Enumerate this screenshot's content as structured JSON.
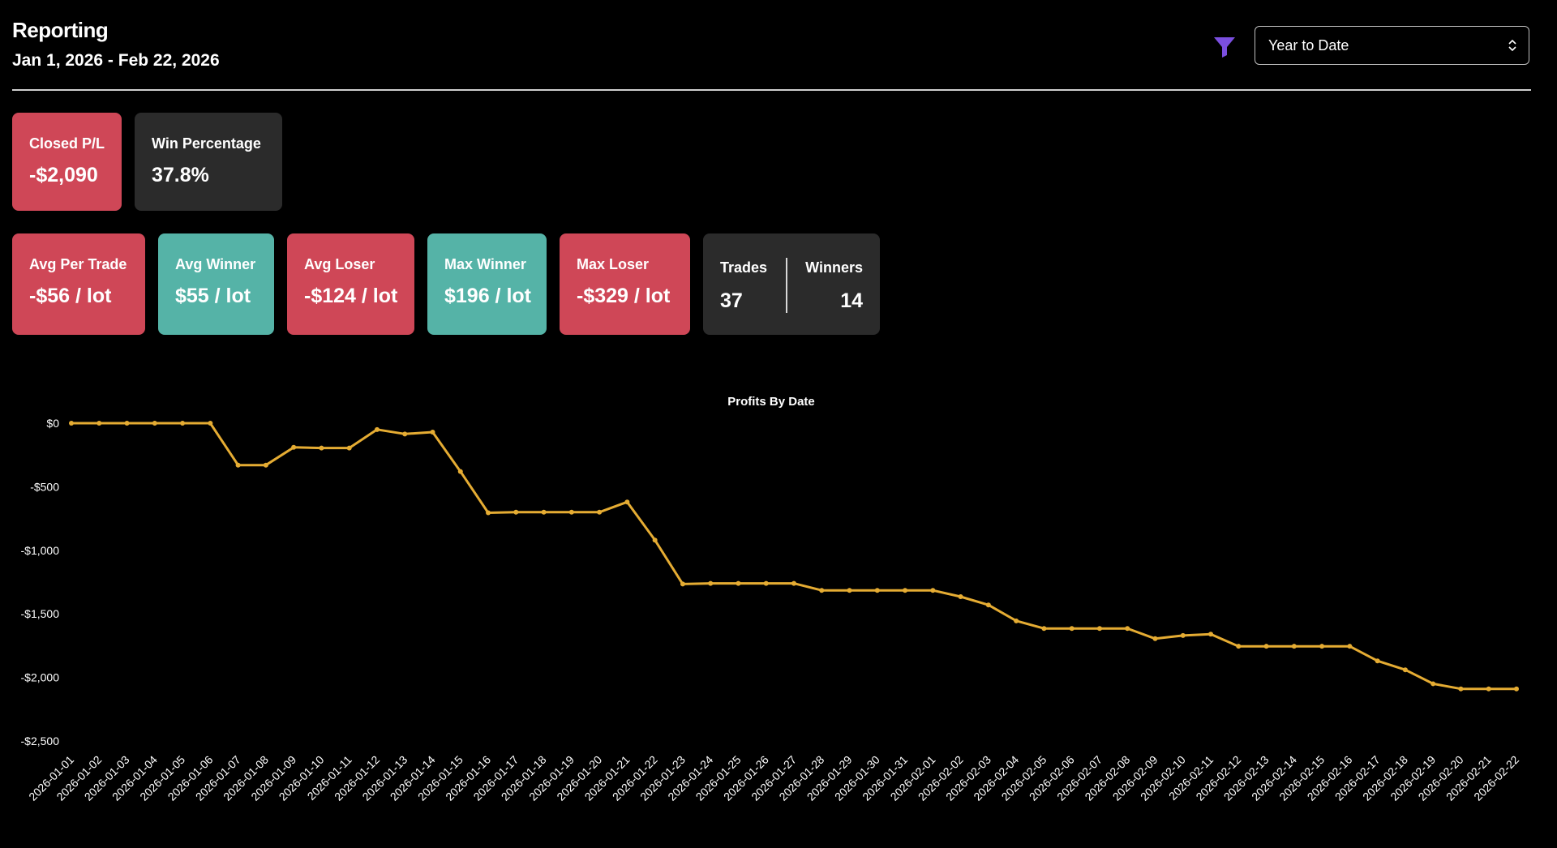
{
  "header": {
    "title": "Reporting",
    "date_range": "Jan 1, 2026 - Feb 22, 2026"
  },
  "filter": {
    "icon": "funnel-icon",
    "color": "#7b4fe0",
    "period_select": "Year to Date"
  },
  "summary": {
    "closed_pl": {
      "label": "Closed P/L",
      "value": "-$2,090"
    },
    "win_percentage": {
      "label": "Win Percentage",
      "value": "37.8%"
    }
  },
  "stats": {
    "avg_per_trade": {
      "label": "Avg Per Trade",
      "value": "-$56 / lot"
    },
    "avg_winner": {
      "label": "Avg Winner",
      "value": "$55 / lot"
    },
    "avg_loser": {
      "label": "Avg Loser",
      "value": "-$124 / lot"
    },
    "max_winner": {
      "label": "Max Winner",
      "value": "$196 / lot"
    },
    "max_loser": {
      "label": "Max Loser",
      "value": "-$329 / lot"
    },
    "trades": {
      "label": "Trades",
      "value": "37"
    },
    "winners": {
      "label": "Winners",
      "value": "14"
    }
  },
  "colors": {
    "negative": "#cf4757",
    "positive": "#55b3a7",
    "neutral": "#2b2b2b",
    "line": "#e5ac33"
  },
  "chart_data": {
    "type": "line",
    "title": "Profits By Date",
    "xlabel": "",
    "ylabel": "",
    "ylim": [
      -2500,
      0
    ],
    "y_ticks": [
      "$0",
      "-$500",
      "-$1,000",
      "-$1,500",
      "-$2,000",
      "-$2,500"
    ],
    "grid": false,
    "x": [
      "2026-01-01",
      "2026-01-02",
      "2026-01-03",
      "2026-01-04",
      "2026-01-05",
      "2026-01-06",
      "2026-01-07",
      "2026-01-08",
      "2026-01-09",
      "2026-01-10",
      "2026-01-11",
      "2026-01-12",
      "2026-01-13",
      "2026-01-14",
      "2026-01-15",
      "2026-01-16",
      "2026-01-17",
      "2026-01-18",
      "2026-01-19",
      "2026-01-20",
      "2026-01-21",
      "2026-01-22",
      "2026-01-23",
      "2026-01-24",
      "2026-01-25",
      "2026-01-26",
      "2026-01-27",
      "2026-01-28",
      "2026-01-29",
      "2026-01-30",
      "2026-01-31",
      "2026-02-01",
      "2026-02-02",
      "2026-02-03",
      "2026-02-04",
      "2026-02-05",
      "2026-02-06",
      "2026-02-07",
      "2026-02-08",
      "2026-02-09",
      "2026-02-10",
      "2026-02-11",
      "2026-02-12",
      "2026-02-13",
      "2026-02-14",
      "2026-02-15",
      "2026-02-16",
      "2026-02-17",
      "2026-02-18",
      "2026-02-19",
      "2026-02-20",
      "2026-02-21",
      "2026-02-22"
    ],
    "series": [
      {
        "color": "#e5ac33",
        "values": [
          0,
          0,
          0,
          0,
          0,
          0,
          -330,
          -330,
          -190,
          -195,
          -195,
          -50,
          -85,
          -70,
          -380,
          -705,
          -700,
          -700,
          -700,
          -700,
          -620,
          -920,
          -1265,
          -1260,
          -1260,
          -1260,
          -1260,
          -1315,
          -1315,
          -1315,
          -1315,
          -1315,
          -1365,
          -1430,
          -1555,
          -1615,
          -1615,
          -1615,
          -1615,
          -1695,
          -1670,
          -1660,
          -1755,
          -1755,
          -1755,
          -1755,
          -1755,
          -1870,
          -1940,
          -2050,
          -2090,
          -2090,
          -2090
        ]
      }
    ]
  }
}
